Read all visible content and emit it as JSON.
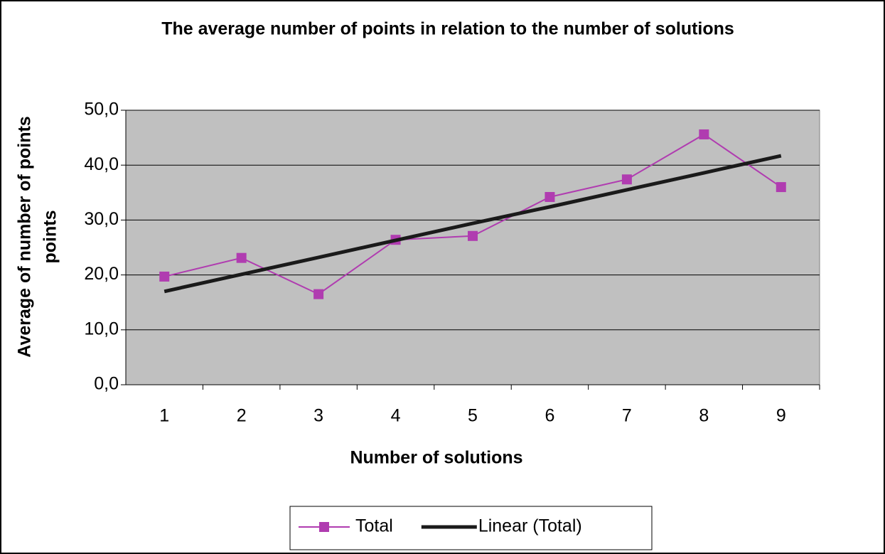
{
  "chart_data": {
    "type": "line",
    "title": "The average number of points in relation to the number of solutions",
    "xlabel": "Number of solutions",
    "ylabel_lines": [
      "Average of number of points",
      "points"
    ],
    "categories": [
      "1",
      "2",
      "3",
      "4",
      "5",
      "6",
      "7",
      "8",
      "9"
    ],
    "series": [
      {
        "name": "Total",
        "color": "#b03cb0",
        "marker": "square",
        "values": [
          19.7,
          23.1,
          16.5,
          26.4,
          27.1,
          34.2,
          37.4,
          45.6,
          36.0
        ]
      },
      {
        "name": "Linear (Total)",
        "color": "#1a1a1a",
        "marker": "none",
        "values": [
          17.0,
          20.1,
          23.2,
          26.3,
          29.4,
          32.4,
          35.5,
          38.6,
          41.7
        ]
      }
    ],
    "ylim": [
      0,
      50
    ],
    "yticks": [
      {
        "value": 0,
        "label": "0,0"
      },
      {
        "value": 10,
        "label": "10,0"
      },
      {
        "value": 20,
        "label": "20,0"
      },
      {
        "value": 30,
        "label": "30,0"
      },
      {
        "value": 40,
        "label": "40,0"
      },
      {
        "value": 50,
        "label": "50,0"
      }
    ],
    "grid": true,
    "plot_background": "#c0c0c0",
    "legend": "bottom"
  }
}
